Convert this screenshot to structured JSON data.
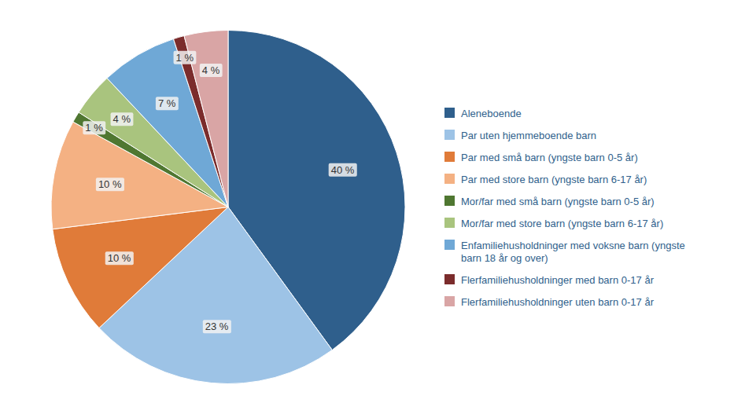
{
  "chart_data": {
    "type": "pie",
    "categories": [
      "Aleneboende",
      "Par uten hjemmeboende barn",
      "Par med små barn (yngste barn 0-5 år)",
      "Par med store barn (yngste barn 6-17 år)",
      "Mor/far med små barn (yngste barn 0-5 år)",
      "Mor/far med store barn (yngste barn 6-17 år)",
      "Enfamiliehusholdninger med voksne barn (yngste\nbarn 18 år og over)",
      "Flerfamiliehusholdninger med barn 0-17 år",
      "Flerfamiliehusholdninger uten barn 0-17 år"
    ],
    "values": [
      40,
      23,
      10,
      10,
      1,
      4,
      7,
      1,
      4
    ],
    "value_labels": [
      "40 %",
      "23 %",
      "10 %",
      "10 %",
      "1 %",
      "4 %",
      "7 %",
      "1 %",
      "4 %"
    ],
    "colors": [
      "#2F5F8C",
      "#9DC3E6",
      "#E07B39",
      "#F4B183",
      "#4F7731",
      "#A9C47E",
      "#6FA8D6",
      "#7B2C2C",
      "#D9A5A5"
    ],
    "data_labels": true,
    "legend": "right"
  }
}
